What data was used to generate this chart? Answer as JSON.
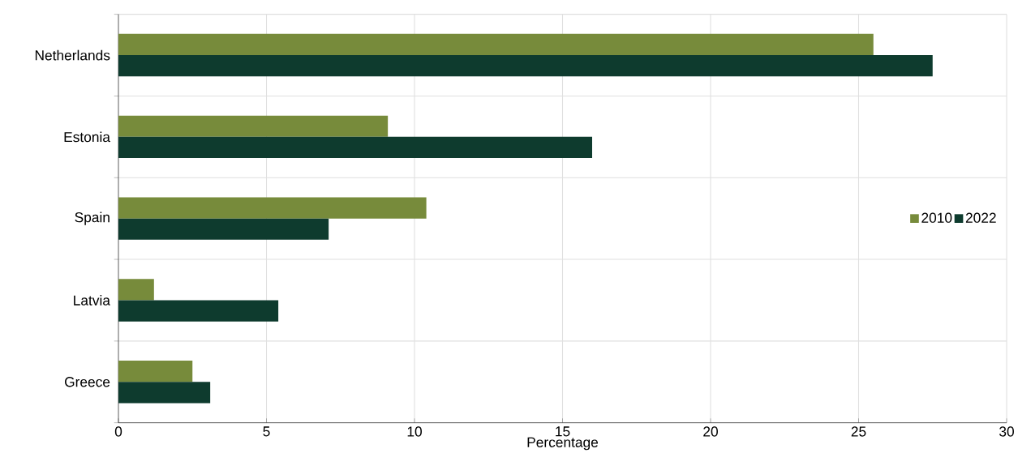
{
  "chart_data": {
    "type": "bar",
    "orientation": "horizontal",
    "xlabel": "Percentage",
    "categories": [
      "Netherlands",
      "Estonia",
      "Spain",
      "Latvia",
      "Greece"
    ],
    "series": [
      {
        "name": "2010",
        "color": "#778b3b",
        "values": [
          25.5,
          9.1,
          10.4,
          1.2,
          2.5
        ]
      },
      {
        "name": "2022",
        "color": "#0e3b2e",
        "values": [
          27.5,
          16.0,
          7.1,
          5.4,
          3.1
        ]
      }
    ],
    "xlim": [
      0,
      30
    ],
    "xticks": [
      0,
      5,
      10,
      15,
      20,
      25,
      30
    ],
    "grid": true,
    "legend": "right"
  }
}
